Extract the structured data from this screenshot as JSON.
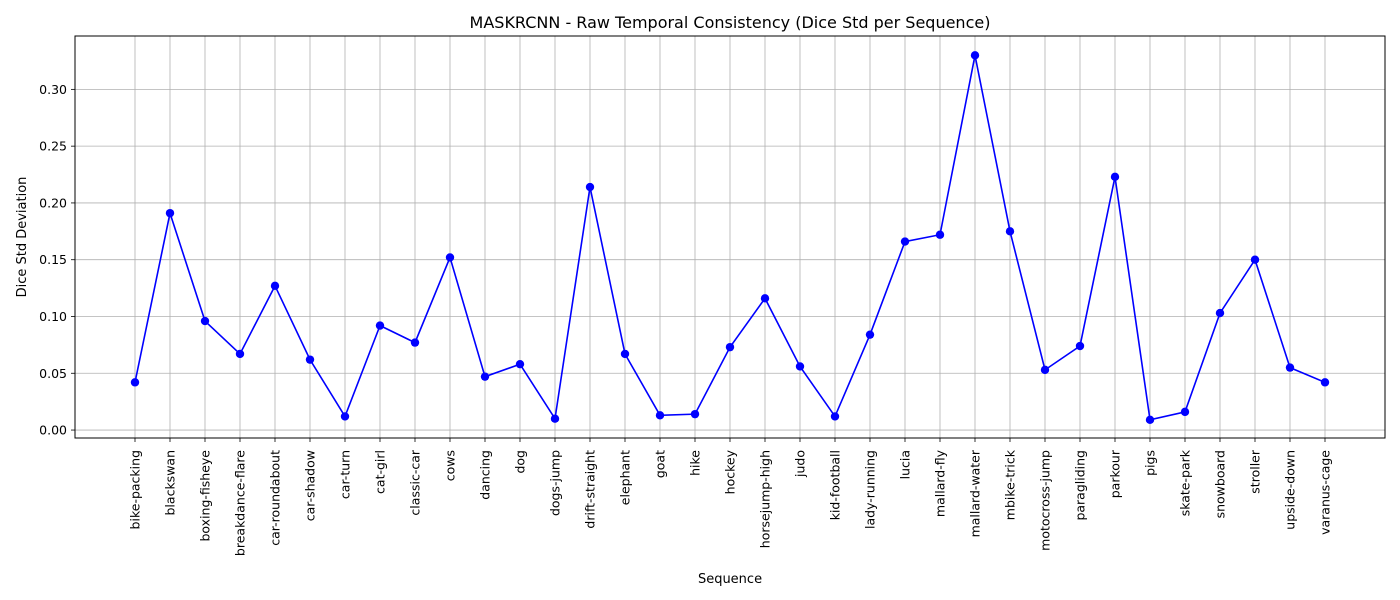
{
  "chart_data": {
    "type": "line",
    "title": "MASKRCNN - Raw Temporal Consistency (Dice Std per Sequence)",
    "xlabel": "Sequence",
    "ylabel": "Dice Std Deviation",
    "ylim": [
      -0.007,
      0.347
    ],
    "yticks": [
      "0.00",
      "0.05",
      "0.10",
      "0.15",
      "0.20",
      "0.25",
      "0.30"
    ],
    "grid": true,
    "categories": [
      "bike-packing",
      "blackswan",
      "boxing-fisheye",
      "breakdance-flare",
      "car-roundabout",
      "car-shadow",
      "car-turn",
      "cat-girl",
      "classic-car",
      "cows",
      "dancing",
      "dog",
      "dogs-jump",
      "drift-straight",
      "elephant",
      "goat",
      "hike",
      "hockey",
      "horsejump-high",
      "judo",
      "kid-football",
      "lady-running",
      "lucia",
      "mallard-fly",
      "mallard-water",
      "mbike-trick",
      "motocross-jump",
      "paragliding",
      "parkour",
      "pigs",
      "skate-park",
      "snowboard",
      "stroller",
      "upside-down",
      "varanus-cage"
    ],
    "series": [
      {
        "color": "#0000ff",
        "values": [
          0.042,
          0.191,
          0.096,
          0.067,
          0.127,
          0.062,
          0.012,
          0.092,
          0.077,
          0.152,
          0.047,
          0.058,
          0.01,
          0.214,
          0.067,
          0.013,
          0.014,
          0.073,
          0.116,
          0.056,
          0.012,
          0.084,
          0.166,
          0.172,
          0.33,
          0.175,
          0.053,
          0.074,
          0.223,
          0.009,
          0.016,
          0.103,
          0.15,
          0.055,
          0.042
        ]
      }
    ]
  }
}
